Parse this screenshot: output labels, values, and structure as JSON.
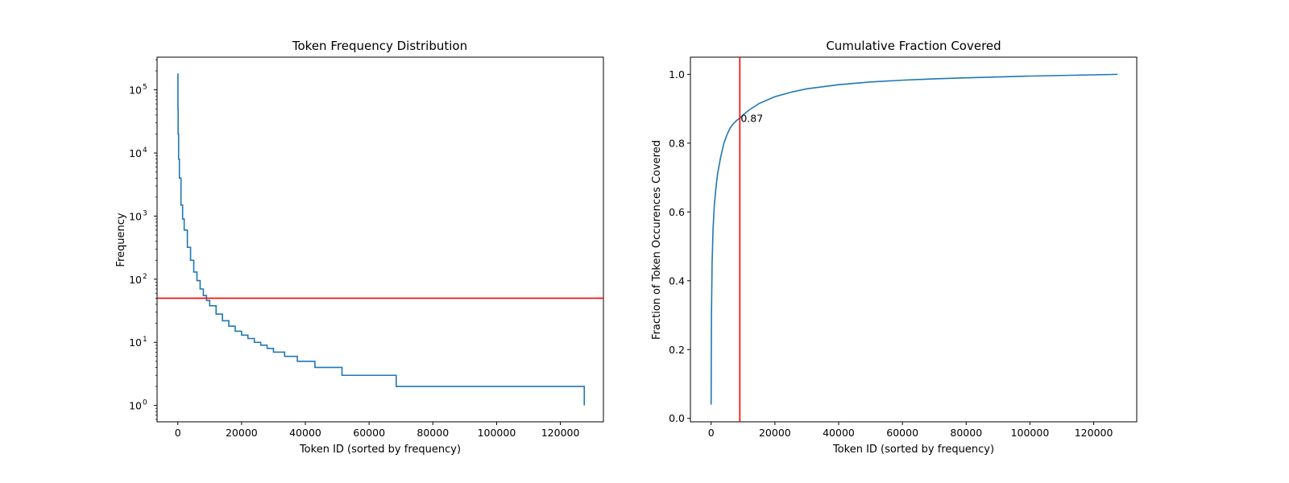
{
  "chart_data": [
    {
      "type": "line",
      "title": "Token Frequency Distribution",
      "xlabel": "Token ID (sorted by frequency)",
      "ylabel": "Frequency",
      "yscale": "log",
      "xlim": [
        -6500,
        133500
      ],
      "ylim": [
        0.55,
        330000
      ],
      "x_ticks": [
        0,
        20000,
        40000,
        60000,
        80000,
        100000,
        120000
      ],
      "y_ticks": [
        {
          "base": "10",
          "exp": "0",
          "value": 1
        },
        {
          "base": "10",
          "exp": "1",
          "value": 10
        },
        {
          "base": "10",
          "exp": "2",
          "value": 100
        },
        {
          "base": "10",
          "exp": "3",
          "value": 1000
        },
        {
          "base": "10",
          "exp": "4",
          "value": 10000
        },
        {
          "base": "10",
          "exp": "5",
          "value": 100000
        }
      ],
      "grid": false,
      "series": [
        {
          "color": "#1f77b4",
          "step": true,
          "points": [
            [
              0,
              180000
            ],
            [
              40,
              50000
            ],
            [
              100,
              20000
            ],
            [
              250,
              8000
            ],
            [
              500,
              4000
            ],
            [
              1000,
              1500
            ],
            [
              1500,
              900
            ],
            [
              2000,
              600
            ],
            [
              3000,
              320
            ],
            [
              4000,
              200
            ],
            [
              5000,
              130
            ],
            [
              6000,
              95
            ],
            [
              7000,
              70
            ],
            [
              8000,
              55
            ],
            [
              9000,
              46
            ],
            [
              10000,
              38
            ],
            [
              12000,
              28
            ],
            [
              14000,
              22
            ],
            [
              16000,
              18
            ],
            [
              18000,
              15
            ],
            [
              20000,
              13
            ],
            [
              22000,
              11.5
            ],
            [
              24000,
              10
            ],
            [
              26000,
              9
            ],
            [
              28000,
              8
            ],
            [
              30000,
              7
            ],
            [
              33500,
              6
            ],
            [
              37500,
              5
            ],
            [
              43000,
              4
            ],
            [
              51500,
              3
            ],
            [
              68500,
              2
            ],
            [
              127500,
              1
            ]
          ]
        }
      ],
      "hlines": [
        {
          "y": 50,
          "color": "#ff0000"
        }
      ]
    },
    {
      "type": "line",
      "title": "Cumulative Fraction Covered",
      "xlabel": "Token ID (sorted by frequency)",
      "ylabel": "Fraction of Token Occurences Covered",
      "yscale": "linear",
      "xlim": [
        -6500,
        133500
      ],
      "ylim": [
        -0.01,
        1.05
      ],
      "x_ticks": [
        0,
        20000,
        40000,
        60000,
        80000,
        100000,
        120000
      ],
      "y_ticks": [
        0.0,
        0.2,
        0.4,
        0.6,
        0.8,
        1.0
      ],
      "grid": false,
      "series": [
        {
          "color": "#1f77b4",
          "points": [
            [
              0,
              0.04
            ],
            [
              100,
              0.3
            ],
            [
              300,
              0.45
            ],
            [
              600,
              0.55
            ],
            [
              1000,
              0.62
            ],
            [
              1500,
              0.67
            ],
            [
              2000,
              0.71
            ],
            [
              3000,
              0.76
            ],
            [
              4000,
              0.8
            ],
            [
              5000,
              0.825
            ],
            [
              6000,
              0.845
            ],
            [
              7000,
              0.857
            ],
            [
              8000,
              0.866
            ],
            [
              9000,
              0.873
            ],
            [
              10000,
              0.882
            ],
            [
              12000,
              0.897
            ],
            [
              15000,
              0.915
            ],
            [
              20000,
              0.935
            ],
            [
              25000,
              0.948
            ],
            [
              30000,
              0.958
            ],
            [
              40000,
              0.97
            ],
            [
              50000,
              0.978
            ],
            [
              60000,
              0.983
            ],
            [
              70000,
              0.987
            ],
            [
              80000,
              0.99
            ],
            [
              100000,
              0.995
            ],
            [
              127500,
              1.0
            ]
          ]
        }
      ],
      "vlines": [
        {
          "x": 9000,
          "color": "#ff0000"
        }
      ],
      "annotations": [
        {
          "text": "0.87",
          "x": 9000,
          "y": 0.873
        }
      ]
    }
  ]
}
